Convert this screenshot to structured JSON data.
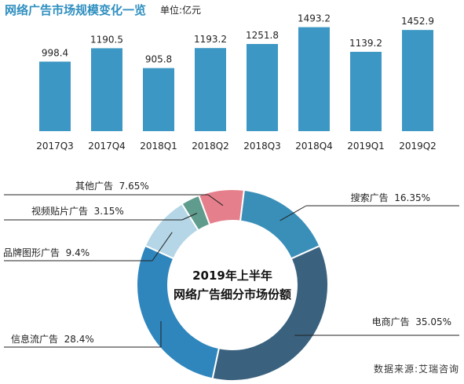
{
  "bar_title": "网络广告市场规模变化一览",
  "bar_unit": "单位:亿元",
  "donut_title_line1": "2019年上半年",
  "donut_title_line2": "网络广告细分市场份额",
  "source": "数据来源:艾瑞咨询",
  "colors": {
    "bar": "#3d97c4",
    "title_blue": "#2f8fc0"
  },
  "chart_data": [
    {
      "type": "bar",
      "title": "网络广告市场规模变化一览",
      "unit": "单位:亿元",
      "categories": [
        "2017Q3",
        "2017Q4",
        "2018Q1",
        "2018Q2",
        "2018Q3",
        "2018Q4",
        "2019Q1",
        "2019Q2"
      ],
      "values": [
        998.4,
        1190.5,
        905.8,
        1193.2,
        1251.8,
        1493.2,
        1139.2,
        1452.9
      ],
      "ylim": [
        0,
        1500
      ],
      "grid": false
    },
    {
      "type": "pie",
      "variant": "donut",
      "title": "2019年上半年 网络广告细分市场份额",
      "slices": [
        {
          "label": "搜索广告",
          "value": 16.35,
          "value_text": "16.35%",
          "color": "#3a8fb8"
        },
        {
          "label": "电商广告",
          "value": 35.05,
          "value_text": "35.05%",
          "color": "#3a617e"
        },
        {
          "label": "信息流广告",
          "value": 28.4,
          "value_text": "28.4%",
          "color": "#2f86bd"
        },
        {
          "label": "品牌图形广告",
          "value": 9.4,
          "value_text": "9.4%",
          "color": "#b4d6e6"
        },
        {
          "label": "视频贴片广告",
          "value": 3.15,
          "value_text": "3.15%",
          "color": "#5f9c8e"
        },
        {
          "label": "其他广告",
          "value": 7.65,
          "value_text": "7.65%",
          "color": "#e57f8c"
        }
      ]
    }
  ]
}
